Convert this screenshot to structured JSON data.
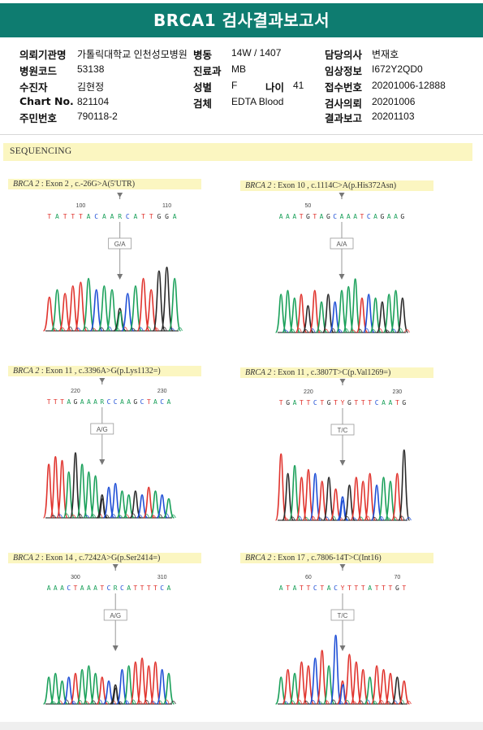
{
  "title": "BRCA1 검사결과보고서",
  "info": {
    "row1": {
      "l1": "의뢰기관명",
      "v1": "가톨릭대학교 인천성모병원",
      "l2": "병동",
      "v2": "14W / 1407",
      "l3": "담당의사",
      "v3": "변재호"
    },
    "row2": {
      "l1": "병원코드",
      "v1": "53138",
      "l2": "진료과",
      "v2": "MB",
      "l3": "임상정보",
      "v3": "I672Y2QD0"
    },
    "row3": {
      "l1": "수진자",
      "v1": "김현정",
      "l2": "성별",
      "v2": "F",
      "l4": "나이",
      "v4": "41",
      "l3": "접수번호",
      "v3": "20201006-12888"
    },
    "row4": {
      "l1": "Chart No.",
      "v1": "821104",
      "l2": "검체",
      "v2": "EDTA Blood",
      "l3": "검사의뢰",
      "v3": "20201006"
    },
    "row5": {
      "l1": "주민번호",
      "v1": "790118-2",
      "l3": "결과보고",
      "v3": "20201103"
    }
  },
  "section_title": "SEQUENCING",
  "colors": {
    "A": "#1aa05a",
    "C": "#1f4fd6",
    "G": "#2a2a2a",
    "T": "#e0332d",
    "R": "#1aa05a",
    "Y": "#e0332d",
    "header": "#0e7c70",
    "highlight": "#fbf6c1"
  },
  "panels": [
    {
      "gene": "BRCA 2",
      "detail": " : Exon 2 , c.-26G>A(5'UTR)",
      "seq": "TATTTACAARCATTGGA",
      "pos_left": "100",
      "pos_right": "110",
      "genotype": "G/A",
      "peaks": [
        "T",
        "A",
        "T",
        "T",
        "T",
        "A",
        "C",
        "A",
        "A",
        "G",
        "C",
        "A",
        "T",
        "T",
        "G",
        "G",
        "A"
      ],
      "heights": [
        0.45,
        0.55,
        0.5,
        0.6,
        0.65,
        0.7,
        0.55,
        0.6,
        0.55,
        0.3,
        0.5,
        0.6,
        0.7,
        0.55,
        0.8,
        0.85,
        0.7
      ],
      "het_index": 9
    },
    {
      "gene": "BRCA 2",
      "detail": " : Exon 10 , c.1114C>A(p.His372Asn)",
      "seq": "AAATGTAGCAAATCAGAAG",
      "pos_left": "50",
      "pos_right": "",
      "genotype": "A/A",
      "peaks": [
        "A",
        "A",
        "A",
        "T",
        "G",
        "T",
        "A",
        "G",
        "C",
        "A",
        "A",
        "A",
        "T",
        "C",
        "A",
        "G",
        "A",
        "A",
        "G"
      ],
      "heights": [
        0.5,
        0.55,
        0.45,
        0.5,
        0.35,
        0.55,
        0.4,
        0.5,
        0.4,
        0.55,
        0.6,
        0.7,
        0.45,
        0.5,
        0.45,
        0.4,
        0.5,
        0.55,
        0.45
      ],
      "het_index": -1
    },
    {
      "gene": "BRCA 2",
      "detail": " : Exon 11 , c.3396A>G(p.Lys1132=)",
      "seq": "TTTAGAAARCCAAGCTACA",
      "pos_left": "220",
      "pos_right": "230",
      "genotype": "A/G",
      "peaks": [
        "T",
        "T",
        "T",
        "A",
        "G",
        "A",
        "A",
        "A",
        "G",
        "C",
        "C",
        "A",
        "A",
        "G",
        "C",
        "T",
        "A",
        "C",
        "A"
      ],
      "heights": [
        0.7,
        0.8,
        0.75,
        0.6,
        0.85,
        0.7,
        0.6,
        0.55,
        0.3,
        0.4,
        0.45,
        0.35,
        0.3,
        0.35,
        0.3,
        0.4,
        0.35,
        0.3,
        0.25
      ],
      "het_index": 8
    },
    {
      "gene": "BRCA 2",
      "detail": " : Exon 11 , c.3807T>C(p.Val1269=)",
      "seq": "TGATTCTGTYGTTTCAATG",
      "pos_left": "220",
      "pos_right": "230",
      "genotype": "T/C",
      "peaks": [
        "T",
        "G",
        "A",
        "T",
        "T",
        "C",
        "T",
        "G",
        "T",
        "C",
        "G",
        "T",
        "T",
        "T",
        "C",
        "A",
        "A",
        "T",
        "G"
      ],
      "heights": [
        0.85,
        0.6,
        0.7,
        0.55,
        0.65,
        0.6,
        0.5,
        0.55,
        0.4,
        0.3,
        0.45,
        0.55,
        0.5,
        0.6,
        0.45,
        0.55,
        0.5,
        0.6,
        0.9
      ],
      "het_index": 9
    },
    {
      "gene": "BRCA 2",
      "detail": " : Exon 14 , c.7242A>G(p.Ser2414=)",
      "seq": "AAACTAAATCRCATTTTCA",
      "pos_left": "300",
      "pos_right": "310",
      "genotype": "A/G",
      "peaks": [
        "A",
        "A",
        "A",
        "C",
        "T",
        "A",
        "A",
        "A",
        "T",
        "C",
        "G",
        "C",
        "A",
        "T",
        "T",
        "T",
        "T",
        "C",
        "A"
      ],
      "heights": [
        0.35,
        0.4,
        0.3,
        0.35,
        0.4,
        0.45,
        0.5,
        0.4,
        0.35,
        0.3,
        0.25,
        0.45,
        0.5,
        0.55,
        0.6,
        0.5,
        0.55,
        0.45,
        0.4
      ],
      "het_index": 10
    },
    {
      "gene": "BRCA 2",
      "detail": " : Exon 17 , c.7806-14T>C(Int16)",
      "seq": "ATATTCTACYTTTATTTGT",
      "pos_left": "60",
      "pos_right": "70",
      "genotype": "T/C",
      "peaks": [
        "A",
        "T",
        "A",
        "T",
        "T",
        "C",
        "T",
        "A",
        "C",
        "T",
        "T",
        "T",
        "T",
        "A",
        "T",
        "T",
        "T",
        "G",
        "T"
      ],
      "heights": [
        0.35,
        0.45,
        0.4,
        0.55,
        0.5,
        0.6,
        0.7,
        0.5,
        0.9,
        0.3,
        0.65,
        0.55,
        0.45,
        0.35,
        0.5,
        0.45,
        0.4,
        0.35,
        0.3
      ],
      "het_index": 9
    }
  ]
}
